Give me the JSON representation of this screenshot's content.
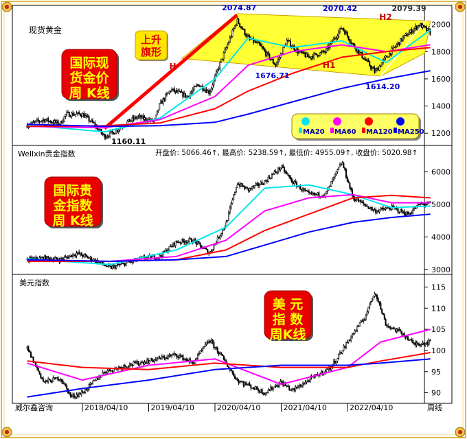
{
  "panels": {
    "gold": {
      "title": "现货黄金",
      "badge": "国际现\n货金价\n周 K线",
      "flag_label": "上升\n旗形",
      "annotations": [
        "2074.87",
        "2070.42",
        "2079.39",
        "1676.71",
        "1614.20",
        "1160.11"
      ],
      "pattern_labels": [
        "H",
        "H1",
        "H2"
      ],
      "legend": [
        "MA20",
        "MA60",
        "MA120",
        "MA250"
      ]
    },
    "wellxin": {
      "title": "Wellxin贵金指数",
      "badge": "国际贵\n金指数\n周 K线",
      "ohlc_text": "开盘价: 5066.46↑, 最高价: 5238.59↑, 最低价: 4955.09↑, 收盘价: 5020.98↑"
    },
    "usd": {
      "title": "美元指数",
      "badge": "美  元\n指  数\n周K线"
    }
  },
  "footer": {
    "source": "威尔鑫咨询",
    "period_label": "周线"
  },
  "colors": {
    "ma20": "#00e5ee",
    "ma60": "#ff00ff",
    "ma120": "#ff0000",
    "ma250": "#0000ff",
    "badge_red": "#e80000",
    "badge_text": "#ffff00",
    "flag_fill": "#ffff33",
    "trend_line": "#ff0000",
    "legend_bg": "#ffff66",
    "frame_gold": "#e0b84a"
  },
  "chart_data": [
    {
      "type": "candlestick",
      "title": "现货黄金",
      "period": "weekly",
      "x_axis": [
        "2018/04",
        "2019/04",
        "2020/04",
        "2021/04",
        "2022/04"
      ],
      "y_ticks": [
        1200,
        1400,
        1600,
        1800,
        2000
      ],
      "ylim": [
        1110,
        2140
      ],
      "close_path": [
        [
          "2017-06",
          1260
        ],
        [
          "2017-09",
          1300
        ],
        [
          "2017-12",
          1270
        ],
        [
          "2018-01",
          1340
        ],
        [
          "2018-04",
          1340
        ],
        [
          "2018-06",
          1270
        ],
        [
          "2018-08",
          1175
        ],
        [
          "2018-10",
          1215
        ],
        [
          "2018-12",
          1280
        ],
        [
          "2019-02",
          1320
        ],
        [
          "2019-05",
          1285
        ],
        [
          "2019-06",
          1410
        ],
        [
          "2019-08",
          1520
        ],
        [
          "2019-11",
          1470
        ],
        [
          "2020-01",
          1560
        ],
        [
          "2020-03",
          1500
        ],
        [
          "2020-05",
          1720
        ],
        [
          "2020-08",
          2030
        ],
        [
          "2020-10",
          1900
        ],
        [
          "2020-12",
          1850
        ],
        [
          "2021-03",
          1700
        ],
        [
          "2021-05",
          1880
        ],
        [
          "2021-07",
          1800
        ],
        [
          "2021-09",
          1760
        ],
        [
          "2021-12",
          1800
        ],
        [
          "2022-03",
          1980
        ],
        [
          "2022-05",
          1850
        ],
        [
          "2022-09",
          1650
        ],
        [
          "2022-11",
          1760
        ],
        [
          "2023-02",
          1900
        ],
        [
          "2023-05",
          2000
        ],
        [
          "2023-07",
          1940
        ]
      ],
      "labels": [
        {
          "text": "2074.87",
          "x": "2020-08",
          "y": 2074.87
        },
        {
          "text": "2070.42",
          "x": "2022-03",
          "y": 2070.42
        },
        {
          "text": "2079.39",
          "x": "2023-05",
          "y": 2079.39
        },
        {
          "text": "1676.71",
          "x": "2021-03",
          "y": 1676.71
        },
        {
          "text": "1614.20",
          "x": "2022-09",
          "y": 1614.2
        },
        {
          "text": "1160.11",
          "x": "2018-08",
          "y": 1160.11
        }
      ],
      "ma": [
        {
          "name": "MA20",
          "values": [
            [
              "2017-06",
              1260
            ],
            [
              "2018-08",
              1210
            ],
            [
              "2019-06",
              1310
            ],
            [
              "2020-04",
              1600
            ],
            [
              "2020-10",
              1900
            ],
            [
              "2021-06",
              1830
            ],
            [
              "2022-03",
              1880
            ],
            [
              "2022-11",
              1720
            ],
            [
              "2023-07",
              1960
            ]
          ]
        },
        {
          "name": "MA60",
          "values": [
            [
              "2017-06",
              1250
            ],
            [
              "2018-08",
              1240
            ],
            [
              "2019-06",
              1300
            ],
            [
              "2020-04",
              1470
            ],
            [
              "2020-10",
              1700
            ],
            [
              "2021-06",
              1800
            ],
            [
              "2022-03",
              1850
            ],
            [
              "2022-11",
              1800
            ],
            [
              "2023-07",
              1850
            ]
          ]
        },
        {
          "name": "MA120",
          "values": [
            [
              "2017-06",
              1250
            ],
            [
              "2018-08",
              1255
            ],
            [
              "2019-06",
              1275
            ],
            [
              "2020-04",
              1380
            ],
            [
              "2020-10",
              1510
            ],
            [
              "2021-06",
              1640
            ],
            [
              "2022-03",
              1760
            ],
            [
              "2022-11",
              1800
            ],
            [
              "2023-07",
              1830
            ]
          ]
        },
        {
          "name": "MA250",
          "values": [
            [
              "2017-06",
              1265
            ],
            [
              "2018-08",
              1250
            ],
            [
              "2019-06",
              1255
            ],
            [
              "2020-04",
              1280
            ],
            [
              "2020-10",
              1340
            ],
            [
              "2021-06",
              1430
            ],
            [
              "2022-03",
              1530
            ],
            [
              "2022-11",
              1600
            ],
            [
              "2023-07",
              1660
            ]
          ]
        }
      ]
    },
    {
      "type": "candlestick",
      "title": "Wellxin贵金指数",
      "period": "weekly",
      "ohlc_last": {
        "open": 5066.46,
        "high": 5238.59,
        "low": 4955.09,
        "close": 5020.98
      },
      "y_ticks": [
        3000,
        4000,
        5000,
        6000
      ],
      "ylim": [
        2850,
        6750
      ],
      "close_path": [
        [
          "2017-06",
          3300
        ],
        [
          "2017-09",
          3350
        ],
        [
          "2017-12",
          3300
        ],
        [
          "2018-03",
          3500
        ],
        [
          "2018-06",
          3300
        ],
        [
          "2018-09",
          3050
        ],
        [
          "2018-12",
          3200
        ],
        [
          "2019-03",
          3350
        ],
        [
          "2019-06",
          3400
        ],
        [
          "2019-09",
          3850
        ],
        [
          "2019-12",
          3900
        ],
        [
          "2020-03",
          3500
        ],
        [
          "2020-06",
          4400
        ],
        [
          "2020-08",
          5650
        ],
        [
          "2020-10",
          5450
        ],
        [
          "2021-01",
          5700
        ],
        [
          "2021-04",
          6150
        ],
        [
          "2021-06",
          5700
        ],
        [
          "2021-09",
          5300
        ],
        [
          "2021-12",
          5300
        ],
        [
          "2022-03",
          6300
        ],
        [
          "2022-05",
          5200
        ],
        [
          "2022-09",
          4800
        ],
        [
          "2022-12",
          4900
        ],
        [
          "2023-03",
          4700
        ],
        [
          "2023-05",
          5000
        ],
        [
          "2023-07",
          5020.98
        ]
      ],
      "ma": [
        {
          "name": "MA20",
          "values": [
            [
              "2017-06",
              3330
            ],
            [
              "2018-09",
              3150
            ],
            [
              "2019-09",
              3600
            ],
            [
              "2020-06",
              4300
            ],
            [
              "2021-01",
              5500
            ],
            [
              "2021-09",
              5600
            ],
            [
              "2022-05",
              5300
            ],
            [
              "2022-12",
              4900
            ],
            [
              "2023-07",
              4950
            ]
          ]
        },
        {
          "name": "MA60",
          "values": [
            [
              "2017-06",
              3300
            ],
            [
              "2018-09",
              3250
            ],
            [
              "2019-09",
              3400
            ],
            [
              "2020-06",
              3900
            ],
            [
              "2021-01",
              4800
            ],
            [
              "2021-09",
              5200
            ],
            [
              "2022-05",
              5300
            ],
            [
              "2022-12",
              5050
            ],
            [
              "2023-07",
              5050
            ]
          ]
        },
        {
          "name": "MA120",
          "values": [
            [
              "2017-06",
              3250
            ],
            [
              "2018-09",
              3250
            ],
            [
              "2019-09",
              3300
            ],
            [
              "2020-06",
              3600
            ],
            [
              "2021-01",
              4200
            ],
            [
              "2021-09",
              4700
            ],
            [
              "2022-05",
              5200
            ],
            [
              "2022-12",
              5280
            ],
            [
              "2023-07",
              5200
            ]
          ]
        },
        {
          "name": "MA250",
          "values": [
            [
              "2017-06",
              3300
            ],
            [
              "2018-09",
              3250
            ],
            [
              "2019-09",
              3300
            ],
            [
              "2020-06",
              3400
            ],
            [
              "2021-01",
              3750
            ],
            [
              "2021-09",
              4150
            ],
            [
              "2022-05",
              4450
            ],
            [
              "2022-12",
              4600
            ],
            [
              "2023-07",
              4700
            ]
          ]
        }
      ]
    },
    {
      "type": "candlestick",
      "title": "美元指数",
      "period": "weekly",
      "x_ticks": [
        "2018/04/10",
        "2019/04/10",
        "2020/04/10",
        "2021/04/10",
        "2022/04/10"
      ],
      "y_ticks": [
        90,
        95,
        100,
        105,
        110,
        115
      ],
      "ylim": [
        87.5,
        117.5
      ],
      "close_path": [
        [
          "2017-06",
          100.5
        ],
        [
          "2017-09",
          92.5
        ],
        [
          "2017-12",
          93.5
        ],
        [
          "2018-02",
          89
        ],
        [
          "2018-04",
          90
        ],
        [
          "2018-08",
          95
        ],
        [
          "2018-12",
          96.5
        ],
        [
          "2019-04",
          97.5
        ],
        [
          "2019-09",
          99
        ],
        [
          "2019-12",
          97
        ],
        [
          "2020-03",
          102.5
        ],
        [
          "2020-05",
          99
        ],
        [
          "2020-08",
          93
        ],
        [
          "2021-01",
          90
        ],
        [
          "2021-04",
          92.5
        ],
        [
          "2021-06",
          90.5
        ],
        [
          "2021-09",
          93
        ],
        [
          "2022-01",
          96
        ],
        [
          "2022-05",
          104
        ],
        [
          "2022-07",
          107.5
        ],
        [
          "2022-09",
          114
        ],
        [
          "2022-11",
          106
        ],
        [
          "2023-02",
          104
        ],
        [
          "2023-04",
          101.5
        ],
        [
          "2023-07",
          102
        ]
      ],
      "ma": [
        {
          "name": "MA60",
          "values": [
            [
              "2017-06",
              97
            ],
            [
              "2018-04",
              93
            ],
            [
              "2019-04",
              96.5
            ],
            [
              "2020-04",
              98
            ],
            [
              "2021-04",
              92
            ],
            [
              "2022-04",
              96
            ],
            [
              "2022-10",
              102
            ],
            [
              "2023-07",
              105
            ]
          ]
        },
        {
          "name": "MA120",
          "values": [
            [
              "2017-06",
              97.5
            ],
            [
              "2018-04",
              96
            ],
            [
              "2019-04",
              95.5
            ],
            [
              "2020-04",
              97
            ],
            [
              "2021-04",
              96
            ],
            [
              "2022-04",
              96
            ],
            [
              "2022-10",
              97.5
            ],
            [
              "2023-07",
              99.5
            ]
          ]
        },
        {
          "name": "MA250",
          "values": [
            [
              "2017-06",
              89
            ],
            [
              "2018-04",
              91
            ],
            [
              "2019-04",
              93
            ],
            [
              "2020-04",
              95.5
            ],
            [
              "2021-04",
              96.5
            ],
            [
              "2022-04",
              96.5
            ],
            [
              "2022-10",
              97
            ],
            [
              "2023-07",
              98
            ]
          ]
        }
      ]
    }
  ]
}
